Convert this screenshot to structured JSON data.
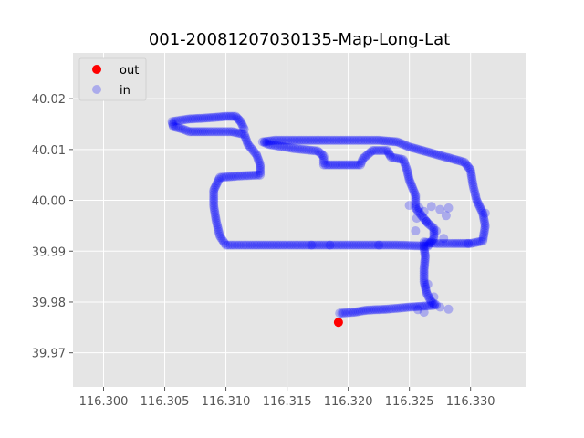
{
  "chart_data": {
    "type": "scatter",
    "title": "001-20081207030135-Map-Long-Lat",
    "xlabel": "",
    "ylabel": "",
    "xlim": [
      116.2975,
      116.3345
    ],
    "ylim": [
      39.9633,
      40.029
    ],
    "x_ticks": [
      116.3,
      116.305,
      116.31,
      116.315,
      116.32,
      116.325,
      116.33
    ],
    "x_tick_labels": [
      "116.300",
      "116.305",
      "116.310",
      "116.315",
      "116.320",
      "116.325",
      "116.330"
    ],
    "y_ticks": [
      39.97,
      39.98,
      39.99,
      40.0,
      40.01,
      40.02
    ],
    "y_tick_labels": [
      "39.97",
      "39.98",
      "39.99",
      "40.00",
      "40.01",
      "40.02"
    ],
    "grid": true,
    "legend_position": "top-left",
    "series": [
      {
        "name": "out",
        "color": "#ff0000",
        "alpha": 1.0,
        "points": [
          [
            116.3192,
            39.976
          ]
        ]
      },
      {
        "name": "in",
        "color": "#0000ff",
        "alpha": 0.25,
        "path": [
          [
            116.3193,
            39.9778
          ],
          [
            116.3205,
            39.978
          ],
          [
            116.3215,
            39.9784
          ],
          [
            116.3232,
            39.9786
          ],
          [
            116.325,
            39.979
          ],
          [
            116.3262,
            39.9792
          ],
          [
            116.3272,
            39.9794
          ],
          [
            116.3268,
            39.98
          ],
          [
            116.3264,
            39.9818
          ],
          [
            116.3262,
            39.984
          ],
          [
            116.3262,
            39.9865
          ],
          [
            116.3263,
            39.989
          ],
          [
            116.3262,
            39.9905
          ],
          [
            116.3262,
            39.9918
          ],
          [
            116.3272,
            39.9915
          ],
          [
            116.3285,
            39.9915
          ],
          [
            116.33,
            39.9915
          ],
          [
            116.331,
            39.992
          ],
          [
            116.3312,
            39.995
          ],
          [
            116.331,
            39.9975
          ],
          [
            116.3305,
            40.0
          ],
          [
            116.3302,
            40.003
          ],
          [
            116.33,
            40.006
          ],
          [
            116.3295,
            40.0075
          ],
          [
            116.328,
            40.0085
          ],
          [
            116.3265,
            40.0095
          ],
          [
            116.325,
            40.0105
          ],
          [
            116.324,
            40.0115
          ],
          [
            116.3225,
            40.0118
          ],
          [
            116.3205,
            40.0118
          ],
          [
            116.3185,
            40.0118
          ],
          [
            116.316,
            40.0118
          ],
          [
            116.314,
            40.0118
          ],
          [
            116.313,
            40.0115
          ],
          [
            116.3135,
            40.011
          ],
          [
            116.3155,
            40.0102
          ],
          [
            116.3175,
            40.0097
          ],
          [
            116.318,
            40.0087
          ],
          [
            116.318,
            40.007
          ],
          [
            116.3195,
            40.007
          ],
          [
            116.321,
            40.007
          ],
          [
            116.3212,
            40.0082
          ],
          [
            116.322,
            40.0098
          ],
          [
            116.3232,
            40.0098
          ],
          [
            116.3235,
            40.0085
          ],
          [
            116.3245,
            40.008
          ],
          [
            116.3248,
            40.006
          ],
          [
            116.325,
            40.004
          ],
          [
            116.3255,
            40.001
          ],
          [
            116.3255,
            39.9985
          ],
          [
            116.326,
            39.997
          ],
          [
            116.3265,
            39.9955
          ],
          [
            116.327,
            39.9945
          ],
          [
            116.327,
            39.9925
          ],
          [
            116.3265,
            39.991
          ],
          [
            116.324,
            39.9912
          ],
          [
            116.321,
            39.9912
          ],
          [
            116.318,
            39.9912
          ],
          [
            116.315,
            39.9912
          ],
          [
            116.312,
            39.9912
          ],
          [
            116.31,
            39.9912
          ],
          [
            116.3095,
            39.993
          ],
          [
            116.3092,
            39.996
          ],
          [
            116.309,
            39.999
          ],
          [
            116.309,
            40.002
          ],
          [
            116.3095,
            40.0045
          ],
          [
            116.311,
            40.0048
          ],
          [
            116.3128,
            40.005
          ],
          [
            116.3128,
            40.007
          ],
          [
            116.3125,
            40.009
          ],
          [
            116.3118,
            40.011
          ],
          [
            116.3115,
            40.013
          ],
          [
            116.3105,
            40.0135
          ],
          [
            116.3085,
            40.0135
          ],
          [
            116.307,
            40.0135
          ],
          [
            116.3065,
            40.014
          ],
          [
            116.3057,
            40.0145
          ],
          [
            116.3056,
            40.0155
          ],
          [
            116.307,
            40.016
          ],
          [
            116.3085,
            40.0162
          ],
          [
            116.31,
            40.0165
          ],
          [
            116.3108,
            40.0165
          ],
          [
            116.3112,
            40.0155
          ],
          [
            116.3115,
            40.014
          ]
        ],
        "cluster_points": [
          [
            116.325,
            39.999
          ],
          [
            116.3258,
            39.9985
          ],
          [
            116.3262,
            39.9978
          ],
          [
            116.3268,
            39.9988
          ],
          [
            116.3275,
            39.9982
          ],
          [
            116.3282,
            39.9985
          ],
          [
            116.3256,
            39.9965
          ],
          [
            116.3264,
            39.9958
          ],
          [
            116.3272,
            39.994
          ],
          [
            116.3278,
            39.9925
          ],
          [
            116.3255,
            39.994
          ],
          [
            116.328,
            39.997
          ],
          [
            116.3257,
            39.9785
          ],
          [
            116.3262,
            39.978
          ],
          [
            116.3275,
            39.979
          ],
          [
            116.3282,
            39.9786
          ],
          [
            116.3225,
            39.9912
          ],
          [
            116.317,
            39.9912
          ],
          [
            116.3185,
            39.9912
          ],
          [
            116.3312,
            39.9975
          ],
          [
            116.3298,
            39.9915
          ],
          [
            116.3265,
            39.9835
          ],
          [
            116.327,
            39.981
          ]
        ]
      }
    ]
  }
}
